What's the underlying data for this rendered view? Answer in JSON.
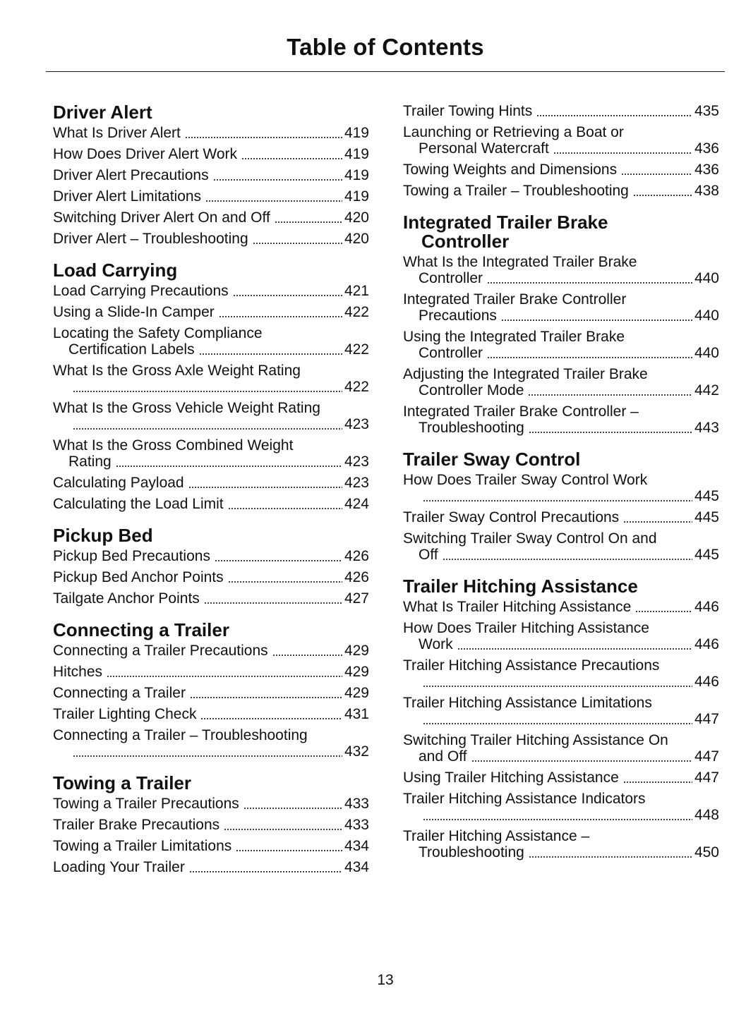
{
  "title": "Table of Contents",
  "page_number": "13",
  "columns": [
    [
      {
        "heading": "Driver Alert",
        "entries": [
          {
            "line1": "What Is Driver Alert",
            "page": "419"
          },
          {
            "line1": "How Does Driver Alert Work",
            "page": "419"
          },
          {
            "line1": "Driver Alert Precautions",
            "page": "419"
          },
          {
            "line1": "Driver Alert Limitations",
            "page": "419"
          },
          {
            "line1": "Switching Driver Alert On and Off",
            "page": "420"
          },
          {
            "line1": "Driver Alert – Troubleshooting",
            "page": "420"
          }
        ]
      },
      {
        "heading": "Load Carrying",
        "entries": [
          {
            "line1": "Load Carrying Precautions",
            "page": "421"
          },
          {
            "line1": "Using a Slide-In Camper",
            "page": "422"
          },
          {
            "line1": "Locating the Safety Compliance",
            "line2": "Certification Labels",
            "page": "422"
          },
          {
            "line1": "What Is the Gross Axle Weight Rating",
            "line2": "",
            "page": "422"
          },
          {
            "line1": "What Is the Gross Vehicle Weight Rating",
            "line2": "",
            "page": "423"
          },
          {
            "line1": "What Is the Gross Combined Weight",
            "line2": "Rating",
            "page": "423"
          },
          {
            "line1": "Calculating Payload",
            "page": "423"
          },
          {
            "line1": "Calculating the Load Limit",
            "page": "424"
          }
        ]
      },
      {
        "heading": "Pickup Bed",
        "entries": [
          {
            "line1": "Pickup Bed Precautions",
            "page": "426"
          },
          {
            "line1": "Pickup Bed Anchor Points",
            "page": "426"
          },
          {
            "line1": "Tailgate Anchor Points",
            "page": "427"
          }
        ]
      },
      {
        "heading": "Connecting a Trailer",
        "entries": [
          {
            "line1": "Connecting a Trailer Precautions",
            "page": "429"
          },
          {
            "line1": "Hitches",
            "page": "429"
          },
          {
            "line1": "Connecting a Trailer",
            "page": "429"
          },
          {
            "line1": "Trailer Lighting Check",
            "page": "431"
          },
          {
            "line1": "Connecting a Trailer – Troubleshooting",
            "line2": "",
            "page": "432"
          }
        ]
      },
      {
        "heading": "Towing a Trailer",
        "entries": [
          {
            "line1": "Towing a Trailer Precautions",
            "page": "433"
          },
          {
            "line1": "Trailer Brake Precautions",
            "page": "433"
          },
          {
            "line1": "Towing a Trailer Limitations",
            "page": "434"
          },
          {
            "line1": "Loading Your Trailer",
            "page": "434"
          }
        ]
      }
    ],
    [
      {
        "heading": "",
        "entries": [
          {
            "line1": "Trailer Towing Hints",
            "page": "435"
          },
          {
            "line1": "Launching or Retrieving a Boat or",
            "line2": "Personal Watercraft",
            "page": "436"
          },
          {
            "line1": "Towing Weights and Dimensions",
            "page": "436"
          },
          {
            "line1": "Towing a Trailer – Troubleshooting",
            "page": "438"
          }
        ]
      },
      {
        "heading": "Integrated Trailer Brake",
        "heading2": "Controller",
        "entries": [
          {
            "line1": "What Is the Integrated Trailer Brake",
            "line2": "Controller",
            "page": "440"
          },
          {
            "line1": "Integrated Trailer Brake Controller",
            "line2": "Precautions",
            "page": "440"
          },
          {
            "line1": "Using the Integrated Trailer Brake",
            "line2": "Controller",
            "page": "440"
          },
          {
            "line1": "Adjusting the Integrated Trailer Brake",
            "line2": "Controller Mode",
            "page": "442"
          },
          {
            "line1": "Integrated Trailer Brake Controller –",
            "line2": "Troubleshooting",
            "page": "443"
          }
        ]
      },
      {
        "heading": "Trailer Sway Control",
        "entries": [
          {
            "line1": "How Does Trailer Sway Control Work",
            "line2": "",
            "page": "445"
          },
          {
            "line1": "Trailer Sway Control Precautions",
            "page": "445"
          },
          {
            "line1": "Switching Trailer Sway Control On and",
            "line2": "Off",
            "page": "445"
          }
        ]
      },
      {
        "heading": "Trailer Hitching Assistance",
        "entries": [
          {
            "line1": "What Is Trailer Hitching Assistance",
            "page": "446"
          },
          {
            "line1": "How Does Trailer Hitching Assistance",
            "line2": "Work",
            "page": "446"
          },
          {
            "line1": "Trailer Hitching Assistance Precautions",
            "line2": "",
            "page": "446"
          },
          {
            "line1": "Trailer Hitching Assistance Limitations",
            "line2": "",
            "page": "447"
          },
          {
            "line1": "Switching Trailer Hitching Assistance On",
            "line2": "and Off",
            "page": "447"
          },
          {
            "line1": "Using Trailer Hitching Assistance",
            "page": "447"
          },
          {
            "line1": "Trailer Hitching Assistance Indicators",
            "line2": "",
            "page": "448"
          },
          {
            "line1": "Trailer Hitching Assistance –",
            "line2": "Troubleshooting",
            "page": "450"
          }
        ]
      }
    ]
  ]
}
